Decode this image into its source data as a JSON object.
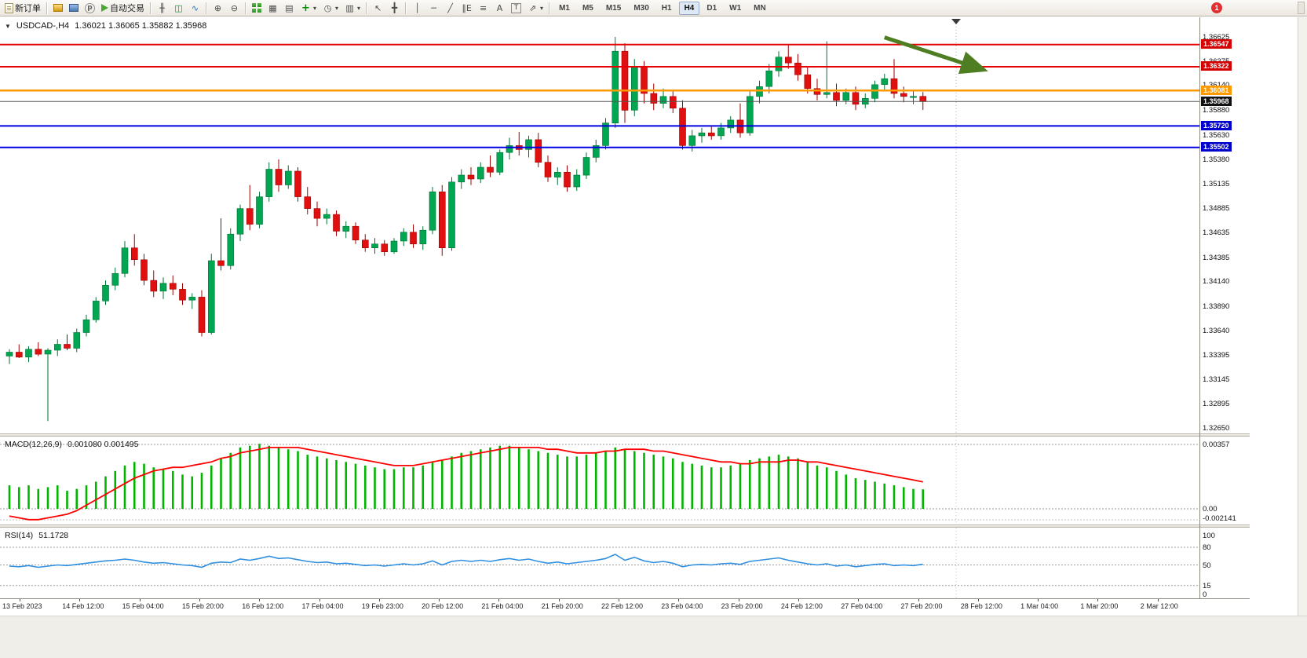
{
  "toolbar": {
    "notification_badge": "1",
    "buttons": [
      {
        "name": "new-order-button",
        "icon": "new-order-icon",
        "label": "新订单"
      },
      {
        "type": "sep"
      },
      {
        "name": "chart-profiles-button",
        "icon": "gold-bars-icon"
      },
      {
        "name": "data-window-button",
        "icon": "blue-chart-icon"
      },
      {
        "name": "navigator-button",
        "icon": "p-circle-icon",
        "glyph": "p"
      },
      {
        "name": "autotrading-button",
        "icon": "autotrade-play-icon",
        "label": "自动交易"
      },
      {
        "type": "sep"
      },
      {
        "name": "bar-chart-button",
        "icon": "bar-chart-icon",
        "glyph": "╫"
      },
      {
        "name": "candlestick-chart-button",
        "icon": "candlestick-icon",
        "glyph": "◫"
      },
      {
        "name": "line-chart-button",
        "icon": "line-chart-icon",
        "glyph": "∿"
      },
      {
        "type": "sep"
      },
      {
        "name": "zoom-in-button",
        "icon": "zoom-in-icon",
        "glyph": "⊕"
      },
      {
        "name": "zoom-out-button",
        "icon": "zoom-out-icon",
        "glyph": "⊖"
      },
      {
        "type": "sep"
      },
      {
        "name": "tile-windows-button",
        "icon": "tile-windows-icon"
      },
      {
        "name": "cascade-windows-button",
        "icon": "cascade-windows-icon",
        "glyph": "▦"
      },
      {
        "name": "arrange-windows-button",
        "icon": "arrange-windows-icon",
        "glyph": "▤"
      },
      {
        "name": "new-chart-button",
        "icon": "new-chart-icon",
        "glyph": "+",
        "dropdown": true
      },
      {
        "name": "period-button",
        "icon": "clock-icon",
        "glyph": "◷",
        "dropdown": true
      },
      {
        "name": "templates-button",
        "icon": "template-icon",
        "glyph": "▥",
        "dropdown": true
      },
      {
        "type": "sep"
      },
      {
        "name": "cursor-button",
        "icon": "cursor-icon",
        "glyph": "↖"
      },
      {
        "name": "crosshair-button",
        "icon": "crosshair-icon",
        "glyph": "╋"
      },
      {
        "type": "sep"
      },
      {
        "name": "vertical-line-button",
        "icon": "vertical-line-icon",
        "glyph": "│"
      },
      {
        "name": "horizontal-line-button",
        "icon": "horizontal-line-icon",
        "glyph": "─"
      },
      {
        "name": "trendline-button",
        "icon": "trendline-icon",
        "glyph": "╱"
      },
      {
        "name": "channel-button",
        "icon": "channel-icon",
        "glyph": "∥E"
      },
      {
        "name": "fibonacci-button",
        "icon": "fibonacci-icon",
        "glyph": "≡"
      },
      {
        "name": "text-button",
        "icon": "text-icon",
        "glyph": "A"
      },
      {
        "name": "text-label-button",
        "icon": "text-label-icon",
        "glyph": "T"
      },
      {
        "name": "shapes-button",
        "icon": "shapes-icon",
        "glyph": "⇗",
        "dropdown": true
      },
      {
        "type": "sep"
      }
    ],
    "timeframes": {
      "items": [
        "M1",
        "M5",
        "M15",
        "M30",
        "H1",
        "H4",
        "D1",
        "W1",
        "MN"
      ],
      "active": "H4"
    }
  },
  "chart": {
    "one_click_glyph": "▼",
    "title": "USDCAD-,H4",
    "ohlc": "1.36021 1.36065 1.35882 1.35968"
  },
  "chart_data": {
    "type": "candlestick",
    "symbol": "USDCAD-",
    "timeframe": "H4",
    "meta": {
      "up_color": "#00a651",
      "down_color": "#e01010",
      "up_stroke": "#007236",
      "down_stroke": "#a00000"
    },
    "price_axis": {
      "top_price": 1.36625,
      "bottom_price": 1.3265,
      "labels": [
        "1.36625",
        "1.36375",
        "1.36140",
        "1.35880",
        "1.35630",
        "1.35380",
        "1.35135",
        "1.34885",
        "1.34635",
        "1.34385",
        "1.34140",
        "1.33890",
        "1.33640",
        "1.33395",
        "1.33145",
        "1.32895",
        "1.32650"
      ]
    },
    "price_tags": [
      {
        "label": "1.36547",
        "value": 1.36547,
        "color": "#d40000"
      },
      {
        "label": "1.36322",
        "value": 1.36322,
        "color": "#d40000"
      },
      {
        "label": "1.36081",
        "value": 1.36081,
        "color": "#ff9900"
      },
      {
        "label": "1.35968",
        "value": 1.35968,
        "color": "#111111"
      },
      {
        "label": "1.35720",
        "value": 1.3572,
        "color": "#0000cc"
      },
      {
        "label": "1.35502",
        "value": 1.35502,
        "color": "#0000cc"
      }
    ],
    "hlines": [
      {
        "value": 1.36547,
        "color": "#e60000",
        "width": 2
      },
      {
        "value": 1.36322,
        "color": "#e60000",
        "width": 2
      },
      {
        "value": 1.36081,
        "color": "#ff9900",
        "width": 2.5
      },
      {
        "value": 1.35968,
        "color": "#555555",
        "width": 1
      },
      {
        "value": 1.3572,
        "color": "#0000e0",
        "width": 2
      },
      {
        "value": 1.35502,
        "color": "#0000e0",
        "width": 2
      }
    ],
    "arrow": {
      "from_index": 91,
      "from_price": 1.3662,
      "to_index": 101,
      "to_price": 1.363,
      "color": "#4e7d22"
    },
    "candles": [
      [
        1.3338,
        1.3345,
        1.333,
        1.3342
      ],
      [
        1.3342,
        1.335,
        1.3336,
        1.3337
      ],
      [
        1.3337,
        1.3348,
        1.3332,
        1.3345
      ],
      [
        1.3345,
        1.3352,
        1.3338,
        1.334
      ],
      [
        1.334,
        1.3346,
        1.3272,
        1.3344
      ],
      [
        1.3344,
        1.3355,
        1.3338,
        1.335
      ],
      [
        1.335,
        1.336,
        1.3344,
        1.3346
      ],
      [
        1.3346,
        1.3366,
        1.3342,
        1.3362
      ],
      [
        1.3362,
        1.338,
        1.3358,
        1.3375
      ],
      [
        1.3375,
        1.3398,
        1.3372,
        1.3394
      ],
      [
        1.3394,
        1.3415,
        1.339,
        1.341
      ],
      [
        1.341,
        1.3428,
        1.3405,
        1.3422
      ],
      [
        1.3422,
        1.3455,
        1.3418,
        1.3448
      ],
      [
        1.3448,
        1.3462,
        1.343,
        1.3436
      ],
      [
        1.3436,
        1.3442,
        1.341,
        1.3415
      ],
      [
        1.3415,
        1.3425,
        1.3398,
        1.3404
      ],
      [
        1.3404,
        1.3418,
        1.3396,
        1.3412
      ],
      [
        1.3412,
        1.342,
        1.34,
        1.3406
      ],
      [
        1.3406,
        1.3412,
        1.339,
        1.3395
      ],
      [
        1.3395,
        1.3402,
        1.3386,
        1.3398
      ],
      [
        1.3398,
        1.3405,
        1.3358,
        1.3362
      ],
      [
        1.3362,
        1.3442,
        1.336,
        1.3435
      ],
      [
        1.3435,
        1.3478,
        1.3425,
        1.343
      ],
      [
        1.343,
        1.3468,
        1.3426,
        1.3462
      ],
      [
        1.3462,
        1.3492,
        1.3455,
        1.3488
      ],
      [
        1.3488,
        1.3512,
        1.3466,
        1.3472
      ],
      [
        1.3472,
        1.3505,
        1.3468,
        1.35
      ],
      [
        1.35,
        1.3535,
        1.3495,
        1.3528
      ],
      [
        1.3528,
        1.3538,
        1.3505,
        1.3512
      ],
      [
        1.3512,
        1.3532,
        1.3508,
        1.3526
      ],
      [
        1.3526,
        1.353,
        1.3495,
        1.35
      ],
      [
        1.35,
        1.351,
        1.3482,
        1.3488
      ],
      [
        1.3488,
        1.3495,
        1.347,
        1.3478
      ],
      [
        1.3478,
        1.3488,
        1.3472,
        1.3482
      ],
      [
        1.3482,
        1.3486,
        1.346,
        1.3465
      ],
      [
        1.3465,
        1.3475,
        1.3458,
        1.347
      ],
      [
        1.347,
        1.3474,
        1.3452,
        1.3456
      ],
      [
        1.3456,
        1.3462,
        1.3444,
        1.3448
      ],
      [
        1.3448,
        1.3458,
        1.3442,
        1.3452
      ],
      [
        1.3452,
        1.3456,
        1.344,
        1.3444
      ],
      [
        1.3444,
        1.3458,
        1.3442,
        1.3455
      ],
      [
        1.3455,
        1.3468,
        1.345,
        1.3464
      ],
      [
        1.3464,
        1.3472,
        1.3448,
        1.3452
      ],
      [
        1.3452,
        1.347,
        1.3446,
        1.3466
      ],
      [
        1.3466,
        1.351,
        1.3462,
        1.3505
      ],
      [
        1.3505,
        1.3512,
        1.344,
        1.3448
      ],
      [
        1.3448,
        1.352,
        1.3445,
        1.3515
      ],
      [
        1.3515,
        1.3528,
        1.3508,
        1.3522
      ],
      [
        1.3522,
        1.353,
        1.3512,
        1.3518
      ],
      [
        1.3518,
        1.3535,
        1.3514,
        1.353
      ],
      [
        1.353,
        1.3542,
        1.352,
        1.3525
      ],
      [
        1.3525,
        1.3548,
        1.3522,
        1.3545
      ],
      [
        1.3545,
        1.356,
        1.3538,
        1.3552
      ],
      [
        1.3552,
        1.3566,
        1.3542,
        1.3548
      ],
      [
        1.3548,
        1.3562,
        1.354,
        1.3558
      ],
      [
        1.3558,
        1.3565,
        1.353,
        1.3535
      ],
      [
        1.3535,
        1.3542,
        1.3515,
        1.352
      ],
      [
        1.352,
        1.353,
        1.3512,
        1.3525
      ],
      [
        1.3525,
        1.3532,
        1.3505,
        1.351
      ],
      [
        1.351,
        1.3528,
        1.3506,
        1.3522
      ],
      [
        1.3522,
        1.3545,
        1.3518,
        1.354
      ],
      [
        1.354,
        1.3558,
        1.3535,
        1.3552
      ],
      [
        1.3552,
        1.358,
        1.3548,
        1.3575
      ],
      [
        1.3575,
        1.36625,
        1.357,
        1.3648
      ],
      [
        1.3648,
        1.3656,
        1.3575,
        1.3588
      ],
      [
        1.3588,
        1.364,
        1.3582,
        1.3632
      ],
      [
        1.3632,
        1.3638,
        1.3595,
        1.3605
      ],
      [
        1.3605,
        1.3615,
        1.3588,
        1.3595
      ],
      [
        1.3595,
        1.361,
        1.359,
        1.3602
      ],
      [
        1.3602,
        1.3608,
        1.3585,
        1.359
      ],
      [
        1.359,
        1.3598,
        1.3548,
        1.3552
      ],
      [
        1.3552,
        1.3568,
        1.3546,
        1.3562
      ],
      [
        1.3562,
        1.357,
        1.3555,
        1.3565
      ],
      [
        1.3565,
        1.3572,
        1.3558,
        1.3562
      ],
      [
        1.3562,
        1.3575,
        1.3558,
        1.357
      ],
      [
        1.357,
        1.3582,
        1.3565,
        1.3578
      ],
      [
        1.3578,
        1.3595,
        1.356,
        1.3565
      ],
      [
        1.3565,
        1.3608,
        1.3562,
        1.3602
      ],
      [
        1.3602,
        1.3618,
        1.3595,
        1.3612
      ],
      [
        1.3612,
        1.3635,
        1.3605,
        1.3628
      ],
      [
        1.3628,
        1.3648,
        1.3622,
        1.3642
      ],
      [
        1.3642,
        1.3655,
        1.363,
        1.3636
      ],
      [
        1.3636,
        1.3645,
        1.3618,
        1.3624
      ],
      [
        1.3624,
        1.3632,
        1.3605,
        1.361
      ],
      [
        1.361,
        1.362,
        1.3598,
        1.3604
      ],
      [
        1.3604,
        1.3658,
        1.36,
        1.3606
      ],
      [
        1.3606,
        1.3615,
        1.3592,
        1.3598
      ],
      [
        1.3598,
        1.361,
        1.3594,
        1.3606
      ],
      [
        1.3606,
        1.3612,
        1.3588,
        1.3594
      ],
      [
        1.3594,
        1.3605,
        1.359,
        1.36
      ],
      [
        1.36,
        1.3618,
        1.3596,
        1.3614
      ],
      [
        1.3614,
        1.3625,
        1.3608,
        1.362
      ],
      [
        1.362,
        1.364,
        1.36,
        1.3605
      ],
      [
        1.3605,
        1.3612,
        1.3596,
        1.3602
      ],
      [
        1.3602,
        1.3608,
        1.3594,
        1.36021
      ],
      [
        1.36021,
        1.36065,
        1.35882,
        1.35968
      ]
    ],
    "macd": {
      "label": "MACD(12,26,9)",
      "values_label": "0.001080 0.001495",
      "main_value": 0.00108,
      "signal_value": 0.001495,
      "max_value": 0.00357,
      "axis": [
        "0.00357",
        "0.00",
        "-0.002141"
      ],
      "histogram_color": "#00b400",
      "signal_color": "#ff0000",
      "histogram_x1000": [
        1.3,
        1.2,
        1.3,
        1.1,
        1.2,
        1.3,
        1.0,
        1.1,
        1.3,
        1.5,
        1.8,
        2.1,
        2.4,
        2.6,
        2.5,
        2.3,
        2.2,
        2.1,
        1.9,
        1.8,
        2.0,
        2.4,
        2.8,
        3.1,
        3.4,
        3.5,
        3.6,
        3.5,
        3.4,
        3.3,
        3.2,
        3.0,
        2.9,
        2.8,
        2.7,
        2.6,
        2.5,
        2.4,
        2.3,
        2.2,
        2.2,
        2.3,
        2.3,
        2.4,
        2.6,
        2.7,
        2.9,
        3.1,
        3.2,
        3.3,
        3.4,
        3.5,
        3.5,
        3.4,
        3.3,
        3.2,
        3.1,
        3.0,
        2.9,
        2.9,
        3.0,
        3.1,
        3.2,
        3.4,
        3.3,
        3.2,
        3.1,
        3.0,
        2.9,
        2.8,
        2.6,
        2.5,
        2.4,
        2.3,
        2.3,
        2.4,
        2.5,
        2.7,
        2.8,
        2.9,
        3.0,
        2.9,
        2.8,
        2.6,
        2.4,
        2.3,
        2.1,
        1.9,
        1.7,
        1.6,
        1.5,
        1.4,
        1.3,
        1.2,
        1.1,
        1.08
      ],
      "signal_x1000": [
        -0.4,
        -0.5,
        -0.6,
        -0.6,
        -0.5,
        -0.4,
        -0.3,
        -0.1,
        0.2,
        0.5,
        0.8,
        1.1,
        1.4,
        1.7,
        1.9,
        2.1,
        2.2,
        2.3,
        2.3,
        2.4,
        2.5,
        2.6,
        2.8,
        2.9,
        3.1,
        3.2,
        3.3,
        3.4,
        3.4,
        3.4,
        3.4,
        3.3,
        3.2,
        3.1,
        3.0,
        2.9,
        2.8,
        2.7,
        2.6,
        2.5,
        2.4,
        2.4,
        2.4,
        2.5,
        2.6,
        2.7,
        2.8,
        2.9,
        3.0,
        3.1,
        3.2,
        3.3,
        3.4,
        3.4,
        3.4,
        3.4,
        3.3,
        3.3,
        3.2,
        3.1,
        3.1,
        3.1,
        3.2,
        3.2,
        3.3,
        3.3,
        3.3,
        3.2,
        3.2,
        3.1,
        3.0,
        2.9,
        2.8,
        2.7,
        2.6,
        2.6,
        2.5,
        2.5,
        2.6,
        2.6,
        2.6,
        2.7,
        2.7,
        2.6,
        2.6,
        2.5,
        2.4,
        2.3,
        2.2,
        2.1,
        2.0,
        1.9,
        1.8,
        1.7,
        1.6,
        1.495
      ]
    },
    "rsi": {
      "label": "RSI(14)",
      "value_label": "51.1728",
      "value": 51.1728,
      "color": "#2f8fe0",
      "axis": [
        "100",
        "80",
        "50",
        "15",
        "0"
      ],
      "levels": [
        80,
        50,
        15
      ],
      "line": [
        48,
        47,
        49,
        46,
        48,
        50,
        49,
        51,
        53,
        55,
        57,
        58,
        60,
        58,
        55,
        53,
        54,
        52,
        50,
        49,
        46,
        53,
        55,
        54,
        60,
        58,
        61,
        65,
        61,
        62,
        59,
        56,
        54,
        55,
        52,
        53,
        51,
        49,
        50,
        48,
        50,
        52,
        50,
        52,
        57,
        50,
        56,
        58,
        56,
        58,
        56,
        59,
        61,
        58,
        60,
        56,
        53,
        55,
        52,
        54,
        56,
        58,
        61,
        68,
        58,
        63,
        57,
        54,
        56,
        53,
        47,
        50,
        51,
        50,
        52,
        53,
        51,
        56,
        58,
        60,
        62,
        58,
        55,
        52,
        50,
        52,
        48,
        50,
        47,
        49,
        51,
        52,
        49,
        50,
        49,
        51.17
      ]
    },
    "time_axis": [
      "13 Feb 2023",
      "14 Feb 12:00",
      "15 Feb 04:00",
      "15 Feb 20:00",
      "16 Feb 12:00",
      "17 Feb 04:00",
      "19 Feb 23:00",
      "20 Feb 12:00",
      "21 Feb 04:00",
      "21 Feb 20:00",
      "22 Feb 12:00",
      "23 Feb 04:00",
      "23 Feb 20:00",
      "24 Feb 12:00",
      "27 Feb 04:00",
      "27 Feb 20:00",
      "28 Feb 12:00",
      "1 Mar 04:00",
      "1 Mar 20:00",
      "2 Mar 12:00"
    ]
  }
}
